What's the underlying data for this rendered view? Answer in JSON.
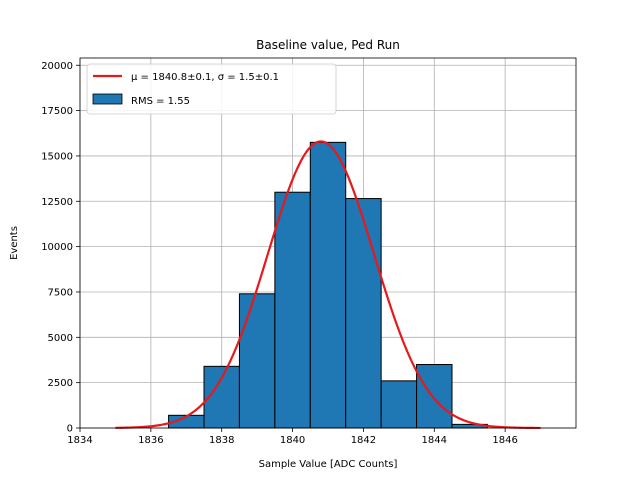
{
  "chart_data": {
    "type": "bar",
    "title": "Baseline value, Ped Run",
    "xlabel": "Sample Value [ADC Counts]",
    "ylabel": "Events",
    "xlim": [
      1834,
      1848
    ],
    "ylim": [
      0,
      20400
    ],
    "grid": true,
    "legend_position": "top-left",
    "x_ticks": [
      1834,
      1836,
      1838,
      1840,
      1842,
      1844,
      1846
    ],
    "y_ticks": [
      0,
      2500,
      5000,
      7500,
      10000,
      12500,
      15000,
      17500,
      20000
    ],
    "bins": [
      {
        "left": 1834.5,
        "right": 1835.5,
        "count": 0
      },
      {
        "left": 1835.5,
        "right": 1836.5,
        "count": 0
      },
      {
        "left": 1836.5,
        "right": 1837.5,
        "count": 700
      },
      {
        "left": 1837.5,
        "right": 1838.5,
        "count": 3400
      },
      {
        "left": 1838.5,
        "right": 1839.5,
        "count": 7400
      },
      {
        "left": 1839.5,
        "right": 1840.5,
        "count": 13000
      },
      {
        "left": 1840.5,
        "right": 1841.5,
        "count": 15750
      },
      {
        "left": 1841.5,
        "right": 1842.5,
        "count": 12650
      },
      {
        "left": 1842.5,
        "right": 1843.5,
        "count": 2600
      },
      {
        "left": 1843.5,
        "right": 1844.5,
        "count": 3500
      },
      {
        "left": 1844.5,
        "right": 1845.5,
        "count": 200
      }
    ],
    "fit": {
      "mu": 1840.8,
      "sigma": 1.5,
      "amplitude": 15800,
      "x_range": [
        1835,
        1847
      ]
    },
    "legend": {
      "fit_label": "μ = 1840.8±0.1, σ = 1.5±0.1",
      "hist_label": "RMS = 1.55"
    },
    "colors": {
      "bar_fill": "#1f77b4",
      "bar_edge": "#000000",
      "fit_line": "#e6191c",
      "grid": "#b0b0b0"
    }
  }
}
